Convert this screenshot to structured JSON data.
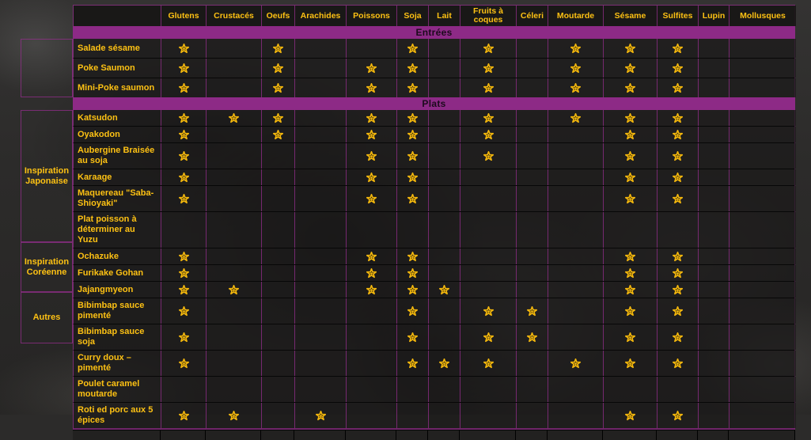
{
  "colors": {
    "accent_purple": "#8d2a86",
    "gold_text": "#fdc113",
    "row_separator": "#070707",
    "star_gold": "#f3b70d"
  },
  "marker_icon": "star-icon",
  "columns": [
    "Glutens",
    "Crustacés",
    "Oeufs",
    "Arachides",
    "Poissons",
    "Soja",
    "Lait",
    "Fruits à coques",
    "Céleri",
    "Moutarde",
    "Sésame",
    "Sulfites",
    "Lupin",
    "Mollusques"
  ],
  "sections": [
    {
      "label": "Entrées",
      "groups": [
        {
          "label": "",
          "rows": [
            {
              "name": "Salade sésame",
              "allergens": [
                "Glutens",
                "Oeufs",
                "Soja",
                "Fruits à coques",
                "Moutarde",
                "Sésame",
                "Sulfites"
              ]
            },
            {
              "name": "Poke Saumon",
              "allergens": [
                "Glutens",
                "Oeufs",
                "Poissons",
                "Soja",
                "Fruits à coques",
                "Moutarde",
                "Sésame",
                "Sulfites"
              ]
            },
            {
              "name": "Mini-Poke saumon",
              "allergens": [
                "Glutens",
                "Oeufs",
                "Poissons",
                "Soja",
                "Fruits à coques",
                "Moutarde",
                "Sésame",
                "Sulfites"
              ]
            }
          ]
        }
      ]
    },
    {
      "label": "Plats",
      "groups": [
        {
          "label": "Inspiration Japonaise",
          "rows": [
            {
              "name": "Katsudon",
              "allergens": [
                "Glutens",
                "Crustacés",
                "Oeufs",
                "Poissons",
                "Soja",
                "Fruits à coques",
                "Moutarde",
                "Sésame",
                "Sulfites"
              ]
            },
            {
              "name": "Oyakodon",
              "allergens": [
                "Glutens",
                "Oeufs",
                "Poissons",
                "Soja",
                "Fruits à coques",
                "Sésame",
                "Sulfites"
              ]
            },
            {
              "name": "Aubergine Braisée au soja",
              "allergens": [
                "Glutens",
                "Poissons",
                "Soja",
                "Fruits à coques",
                "Sésame",
                "Sulfites"
              ]
            },
            {
              "name": "Karaage",
              "allergens": [
                "Glutens",
                "Poissons",
                "Soja",
                "Sésame",
                "Sulfites"
              ]
            },
            {
              "name": "Maquereau \"Saba-Shioyaki\"",
              "allergens": [
                "Glutens",
                "Poissons",
                "Soja",
                "Sésame",
                "Sulfites"
              ]
            },
            {
              "name": "Plat poisson à déterminer au Yuzu",
              "allergens": []
            },
            {
              "name": "Ochazuke",
              "allergens": [
                "Glutens",
                "Poissons",
                "Soja",
                "Sésame",
                "Sulfites"
              ]
            },
            {
              "name": "Furikake Gohan",
              "allergens": [
                "Glutens",
                "Poissons",
                "Soja",
                "Sésame",
                "Sulfites"
              ]
            }
          ]
        },
        {
          "label": "Inspiration Coréenne",
          "rows": [
            {
              "name": "Jajangmyeon",
              "allergens": [
                "Glutens",
                "Crustacés",
                "Poissons",
                "Soja",
                "Lait",
                "Sésame",
                "Sulfites"
              ]
            },
            {
              "name": "Bibimbap sauce pimenté",
              "allergens": [
                "Glutens",
                "Soja",
                "Fruits à coques",
                "Céleri",
                "Sésame",
                "Sulfites"
              ]
            },
            {
              "name": "Bibimbap sauce soja",
              "allergens": [
                "Glutens",
                "Soja",
                "Fruits à coques",
                "Céleri",
                "Sésame",
                "Sulfites"
              ]
            }
          ]
        },
        {
          "label": "Autres",
          "rows": [
            {
              "name": "Curry doux – pimenté",
              "allergens": [
                "Glutens",
                "Soja",
                "Lait",
                "Fruits à coques",
                "Moutarde",
                "Sésame",
                "Sulfites"
              ]
            },
            {
              "name": "Poulet caramel moutarde",
              "allergens": []
            },
            {
              "name": "Roti ed porc aux 5 épices",
              "allergens": [
                "Glutens",
                "Crustacés",
                "Arachides",
                "Sésame",
                "Sulfites"
              ]
            }
          ]
        }
      ]
    }
  ]
}
